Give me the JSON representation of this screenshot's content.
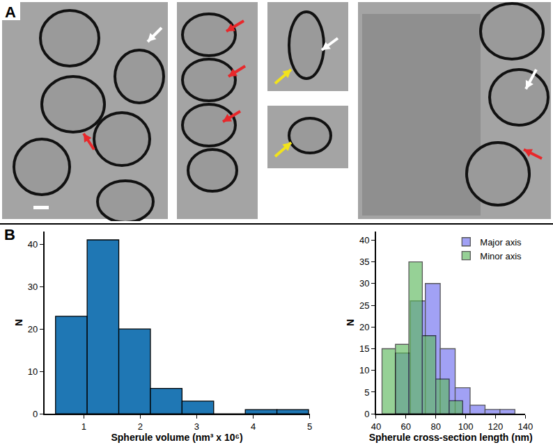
{
  "panel_labels": [
    "A",
    "B"
  ],
  "chart_data": [
    {
      "type": "histogram",
      "x_label": "Spherule volume (nm³ x 10⁶)",
      "y_label": "N",
      "bins": [
        0.5,
        1.06,
        1.62,
        2.18,
        2.74,
        3.3,
        3.86,
        4.42,
        4.98
      ],
      "series": [
        {
          "name": "Spherule volume",
          "color": "#1f77b4",
          "values": [
            23,
            41,
            20,
            6,
            3,
            0,
            1,
            1
          ]
        }
      ],
      "xlim": [
        0.3,
        5.0
      ],
      "xticks": [
        1,
        2,
        3,
        4,
        5
      ],
      "ylim": [
        0,
        43
      ],
      "yticks": [
        0,
        10,
        20,
        30,
        40
      ],
      "grid": false
    },
    {
      "type": "histogram",
      "x_label": "Spherule cross-section length (nm)",
      "y_label": "N",
      "series": [
        {
          "name": "Major axis",
          "color": "#6f6ff0",
          "bins": [
            53,
            63,
            73,
            83,
            93,
            103,
            113,
            123,
            133
          ],
          "values": [
            14,
            26,
            30,
            15,
            6,
            2,
            1,
            1
          ]
        },
        {
          "name": "Minor axis",
          "color": "#5fb85f",
          "bins": [
            44,
            53,
            62,
            71,
            80,
            89,
            98
          ],
          "values": [
            15,
            16,
            35,
            18,
            8,
            3
          ]
        }
      ],
      "xlim": [
        40,
        140
      ],
      "xticks": [
        40,
        60,
        80,
        100,
        120,
        140
      ],
      "ylim": [
        0,
        42
      ],
      "yticks": [
        0,
        5,
        10,
        15,
        20,
        25,
        30,
        35,
        40
      ],
      "legend": "upper right",
      "grid": false
    }
  ]
}
